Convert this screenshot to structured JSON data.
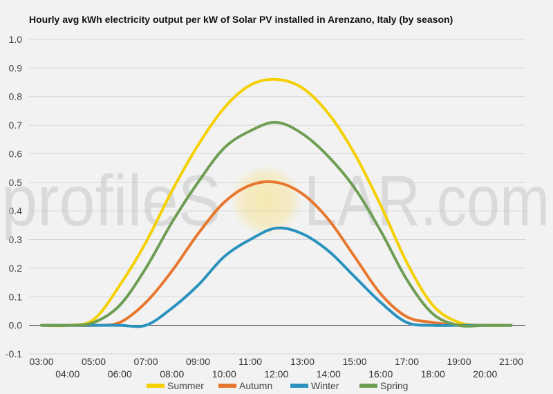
{
  "chart_data": {
    "type": "line",
    "title": "Hourly avg kWh electricity output per kW of Solar PV installed in Arenzano, Italy (by season)",
    "xlabel": "",
    "ylabel": "",
    "ylim": [
      -0.1,
      1.0
    ],
    "yticks": [
      "1.0",
      "0.9",
      "0.8",
      "0.7",
      "0.6",
      "0.5",
      "0.4",
      "0.3",
      "0.2",
      "0.1",
      "0.0",
      "-0.1"
    ],
    "grid": true,
    "legend_position": "bottom",
    "x": [
      "03:00",
      "04:00",
      "05:00",
      "06:00",
      "07:00",
      "08:00",
      "09:00",
      "10:00",
      "11:00",
      "12:00",
      "13:00",
      "14:00",
      "15:00",
      "16:00",
      "17:00",
      "18:00",
      "19:00",
      "20:00",
      "21:00"
    ],
    "series": [
      {
        "name": "Summer",
        "color": "#f5d000",
        "values": [
          0.0,
          0.0,
          0.02,
          0.14,
          0.29,
          0.47,
          0.63,
          0.76,
          0.84,
          0.86,
          0.83,
          0.74,
          0.6,
          0.42,
          0.22,
          0.07,
          0.01,
          0.0,
          0.0
        ]
      },
      {
        "name": "Autumn",
        "color": "#e8772e",
        "values": [
          0.0,
          0.0,
          0.0,
          0.01,
          0.08,
          0.19,
          0.32,
          0.43,
          0.49,
          0.5,
          0.46,
          0.37,
          0.24,
          0.11,
          0.03,
          0.01,
          0.0,
          0.0,
          0.0
        ]
      },
      {
        "name": "Winter",
        "color": "#2a92be",
        "values": [
          0.0,
          0.0,
          0.0,
          0.0,
          0.0,
          0.06,
          0.14,
          0.24,
          0.3,
          0.34,
          0.32,
          0.26,
          0.17,
          0.08,
          0.01,
          0.0,
          0.0,
          0.0,
          0.0
        ]
      },
      {
        "name": "Spring",
        "color": "#6e9e54",
        "values": [
          0.0,
          0.0,
          0.01,
          0.07,
          0.2,
          0.36,
          0.5,
          0.62,
          0.68,
          0.71,
          0.67,
          0.59,
          0.48,
          0.33,
          0.16,
          0.04,
          0.0,
          0.0,
          0.0
        ]
      }
    ]
  },
  "watermark": {
    "text_left": "profileS",
    "text_right": "LAR.com"
  }
}
